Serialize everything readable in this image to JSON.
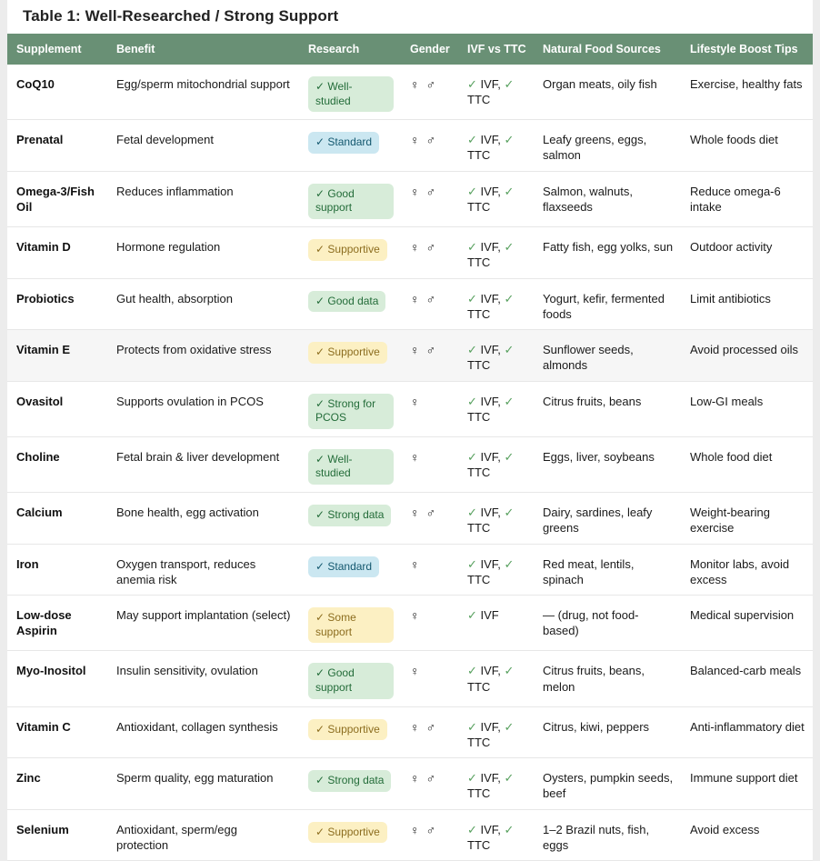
{
  "page": {
    "title": "Table 1: Well-Researched / Strong Support"
  },
  "icons": {
    "check": "✓",
    "female": "♀",
    "male": "♂"
  },
  "colors": {
    "header_bg": "#699075",
    "header_text": "#ffffff",
    "badge_green_bg": "#d7ecd9",
    "badge_green_text": "#236c39",
    "badge_blue_bg": "#cbe7f1",
    "badge_blue_text": "#14586f",
    "badge_yellow_bg": "#fcf0c3",
    "badge_yellow_text": "#8c6d1f",
    "check_green": "#57a05e",
    "row_divider": "#e7e7e7",
    "highlight_row_bg": "#f6f6f6",
    "page_bg": "#ececec"
  },
  "table": {
    "columns": [
      {
        "key": "supplement",
        "label": "Supplement"
      },
      {
        "key": "benefit",
        "label": "Benefit"
      },
      {
        "key": "research",
        "label": "Research"
      },
      {
        "key": "gender",
        "label": "Gender"
      },
      {
        "key": "ivf_vs_ttc",
        "label": "IVF vs TTC"
      },
      {
        "key": "natural_food_sources",
        "label": "Natural Food Sources"
      },
      {
        "key": "lifestyle_boost_tips",
        "label": "Lifestyle Boost Tips"
      }
    ],
    "rows": [
      {
        "supplement": "CoQ10",
        "benefit": "Egg/sperm mitochondrial support",
        "research": {
          "label": "Well-studied",
          "tone": "green"
        },
        "gender": {
          "female": true,
          "male": true
        },
        "ivf_vs_ttc": {
          "ivf": true,
          "ttc": true
        },
        "natural_food_sources": "Organ meats, oily fish",
        "lifestyle_boost_tips": "Exercise, healthy fats",
        "highlighted": false
      },
      {
        "supplement": "Prenatal",
        "benefit": "Fetal development",
        "research": {
          "label": "Standard",
          "tone": "blue"
        },
        "gender": {
          "female": true,
          "male": true
        },
        "ivf_vs_ttc": {
          "ivf": true,
          "ttc": true
        },
        "natural_food_sources": "Leafy greens, eggs, salmon",
        "lifestyle_boost_tips": "Whole foods diet",
        "highlighted": false
      },
      {
        "supplement": "Omega-3/Fish Oil",
        "benefit": "Reduces inflammation",
        "research": {
          "label": "Good support",
          "tone": "green"
        },
        "gender": {
          "female": true,
          "male": true
        },
        "ivf_vs_ttc": {
          "ivf": true,
          "ttc": true
        },
        "natural_food_sources": "Salmon, walnuts, flaxseeds",
        "lifestyle_boost_tips": "Reduce omega-6 intake",
        "highlighted": false
      },
      {
        "supplement": "Vitamin D",
        "benefit": "Hormone regulation",
        "research": {
          "label": "Supportive",
          "tone": "yellow"
        },
        "gender": {
          "female": true,
          "male": true
        },
        "ivf_vs_ttc": {
          "ivf": true,
          "ttc": true
        },
        "natural_food_sources": "Fatty fish, egg yolks, sun",
        "lifestyle_boost_tips": "Outdoor activity",
        "highlighted": false
      },
      {
        "supplement": "Probiotics",
        "benefit": "Gut health, absorption",
        "research": {
          "label": "Good data",
          "tone": "green"
        },
        "gender": {
          "female": true,
          "male": true
        },
        "ivf_vs_ttc": {
          "ivf": true,
          "ttc": true
        },
        "natural_food_sources": "Yogurt, kefir, fermented foods",
        "lifestyle_boost_tips": "Limit antibiotics",
        "highlighted": false
      },
      {
        "supplement": "Vitamin E",
        "benefit": "Protects from oxidative stress",
        "research": {
          "label": "Supportive",
          "tone": "yellow"
        },
        "gender": {
          "female": true,
          "male": true
        },
        "ivf_vs_ttc": {
          "ivf": true,
          "ttc": true
        },
        "natural_food_sources": "Sunflower seeds, almonds",
        "lifestyle_boost_tips": "Avoid processed oils",
        "highlighted": true
      },
      {
        "supplement": "Ovasitol",
        "benefit": "Supports ovulation in PCOS",
        "research": {
          "label": "Strong for PCOS",
          "tone": "green"
        },
        "gender": {
          "female": true,
          "male": false
        },
        "ivf_vs_ttc": {
          "ivf": true,
          "ttc": true
        },
        "natural_food_sources": "Citrus fruits, beans",
        "lifestyle_boost_tips": "Low-GI meals",
        "highlighted": false
      },
      {
        "supplement": "Choline",
        "benefit": "Fetal brain & liver development",
        "research": {
          "label": "Well-studied",
          "tone": "green"
        },
        "gender": {
          "female": true,
          "male": false
        },
        "ivf_vs_ttc": {
          "ivf": true,
          "ttc": true
        },
        "natural_food_sources": "Eggs, liver, soybeans",
        "lifestyle_boost_tips": "Whole food diet",
        "highlighted": false
      },
      {
        "supplement": "Calcium",
        "benefit": "Bone health, egg activation",
        "research": {
          "label": "Strong data",
          "tone": "green"
        },
        "gender": {
          "female": true,
          "male": true
        },
        "ivf_vs_ttc": {
          "ivf": true,
          "ttc": true
        },
        "natural_food_sources": "Dairy, sardines, leafy greens",
        "lifestyle_boost_tips": "Weight-bearing exercise",
        "highlighted": false
      },
      {
        "supplement": "Iron",
        "benefit": "Oxygen transport, reduces anemia risk",
        "research": {
          "label": "Standard",
          "tone": "blue"
        },
        "gender": {
          "female": true,
          "male": false
        },
        "ivf_vs_ttc": {
          "ivf": true,
          "ttc": true
        },
        "natural_food_sources": "Red meat, lentils, spinach",
        "lifestyle_boost_tips": "Monitor labs, avoid excess",
        "highlighted": false
      },
      {
        "supplement": "Low-dose Aspirin",
        "benefit": "May support implantation (select)",
        "research": {
          "label": "Some support",
          "tone": "yellow"
        },
        "gender": {
          "female": true,
          "male": false
        },
        "ivf_vs_ttc": {
          "ivf": true,
          "ttc": false
        },
        "natural_food_sources": "— (drug, not food-based)",
        "lifestyle_boost_tips": "Medical supervision",
        "highlighted": false
      },
      {
        "supplement": "Myo-Inositol",
        "benefit": "Insulin sensitivity, ovulation",
        "research": {
          "label": "Good support",
          "tone": "green"
        },
        "gender": {
          "female": true,
          "male": false
        },
        "ivf_vs_ttc": {
          "ivf": true,
          "ttc": true
        },
        "natural_food_sources": "Citrus fruits, beans, melon",
        "lifestyle_boost_tips": "Balanced-carb meals",
        "highlighted": false
      },
      {
        "supplement": "Vitamin C",
        "benefit": "Antioxidant, collagen synthesis",
        "research": {
          "label": "Supportive",
          "tone": "yellow"
        },
        "gender": {
          "female": true,
          "male": true
        },
        "ivf_vs_ttc": {
          "ivf": true,
          "ttc": true
        },
        "natural_food_sources": "Citrus, kiwi, peppers",
        "lifestyle_boost_tips": "Anti-inflammatory diet",
        "highlighted": false
      },
      {
        "supplement": "Zinc",
        "benefit": "Sperm quality, egg maturation",
        "research": {
          "label": "Strong data",
          "tone": "green"
        },
        "gender": {
          "female": true,
          "male": true
        },
        "ivf_vs_ttc": {
          "ivf": true,
          "ttc": true
        },
        "natural_food_sources": "Oysters, pumpkin seeds, beef",
        "lifestyle_boost_tips": "Immune support diet",
        "highlighted": false
      },
      {
        "supplement": "Selenium",
        "benefit": "Antioxidant, sperm/egg protection",
        "research": {
          "label": "Supportive",
          "tone": "yellow"
        },
        "gender": {
          "female": true,
          "male": true
        },
        "ivf_vs_ttc": {
          "ivf": true,
          "ttc": true
        },
        "natural_food_sources": "1–2 Brazil nuts, fish, eggs",
        "lifestyle_boost_tips": "Avoid excess",
        "highlighted": false
      }
    ]
  }
}
